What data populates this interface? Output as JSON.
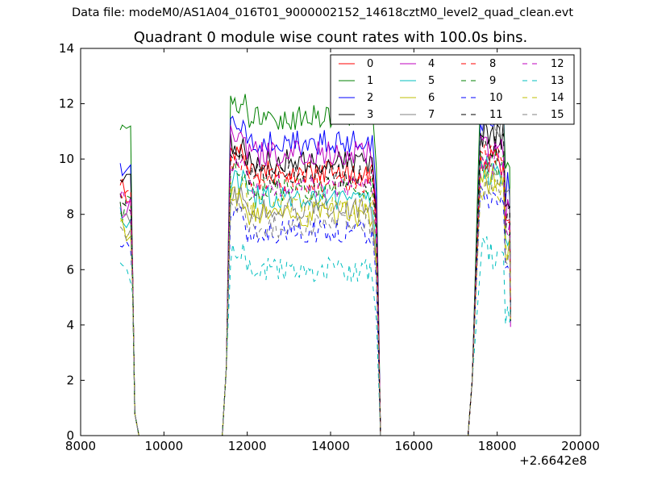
{
  "suptitle": "Data file: modeM0/AS1A04_016T01_9000002152_14618cztM0_level2_quad_clean.evt",
  "chart_data": {
    "type": "line",
    "title": "Quadrant 0 module wise count rates with 100.0s bins.",
    "xlabel": "",
    "ylabel": "",
    "x_offset_label": "+2.6642e8",
    "xlim": [
      8000,
      20000
    ],
    "ylim": [
      0,
      14
    ],
    "xticks": [
      8000,
      10000,
      12000,
      14000,
      16000,
      18000,
      20000
    ],
    "yticks": [
      0,
      2,
      4,
      6,
      8,
      10,
      12,
      14
    ],
    "grid": false,
    "legend": {
      "placement": "top-right",
      "columns": 4
    },
    "segments": [
      {
        "x_start": 9000,
        "x_end": 9200,
        "step": 100
      },
      {
        "x_start": 11600,
        "x_end": 15000,
        "step": 50
      },
      {
        "x_start": 17600,
        "x_end": 18300,
        "step": 50
      }
    ],
    "series": [
      {
        "name": "0",
        "color": "#ff0000",
        "dashed": false,
        "levels": [
          8.8,
          9.5,
          9.9
        ]
      },
      {
        "name": "1",
        "color": "#008000",
        "dashed": false,
        "levels": [
          10.8,
          11.5,
          12.0
        ]
      },
      {
        "name": "2",
        "color": "#0000ff",
        "dashed": false,
        "levels": [
          9.6,
          10.6,
          11.5
        ]
      },
      {
        "name": "3",
        "color": "#000000",
        "dashed": false,
        "levels": [
          9.0,
          9.9,
          10.9
        ]
      },
      {
        "name": "4",
        "color": "#bf00bf",
        "dashed": false,
        "levels": [
          8.2,
          10.2,
          10.5
        ]
      },
      {
        "name": "5",
        "color": "#00bfbf",
        "dashed": false,
        "levels": [
          8.0,
          8.6,
          9.6
        ]
      },
      {
        "name": "6",
        "color": "#bfbf00",
        "dashed": false,
        "levels": [
          7.5,
          8.0,
          9.2
        ]
      },
      {
        "name": "7",
        "color": "#808080",
        "dashed": false,
        "levels": [
          7.8,
          8.2,
          11.3
        ]
      },
      {
        "name": "8",
        "color": "#ff0000",
        "dashed": true,
        "levels": [
          8.5,
          9.2,
          10.2
        ]
      },
      {
        "name": "9",
        "color": "#008000",
        "dashed": true,
        "levels": [
          8.2,
          8.9,
          9.7
        ]
      },
      {
        "name": "10",
        "color": "#0000ff",
        "dashed": true,
        "levels": [
          6.6,
          7.4,
          8.6
        ]
      },
      {
        "name": "11",
        "color": "#000000",
        "dashed": true,
        "levels": [
          8.5,
          9.4,
          10.4
        ]
      },
      {
        "name": "12",
        "color": "#bf00bf",
        "dashed": true,
        "levels": [
          8.4,
          9.0,
          9.9
        ]
      },
      {
        "name": "13",
        "color": "#00bfbf",
        "dashed": true,
        "levels": [
          6.0,
          6.0,
          6.6
        ]
      },
      {
        "name": "14",
        "color": "#bfbf00",
        "dashed": true,
        "levels": [
          7.6,
          8.3,
          9.0
        ]
      },
      {
        "name": "15",
        "color": "#808080",
        "dashed": true,
        "levels": [
          7.3,
          7.6,
          9.1
        ]
      }
    ]
  }
}
